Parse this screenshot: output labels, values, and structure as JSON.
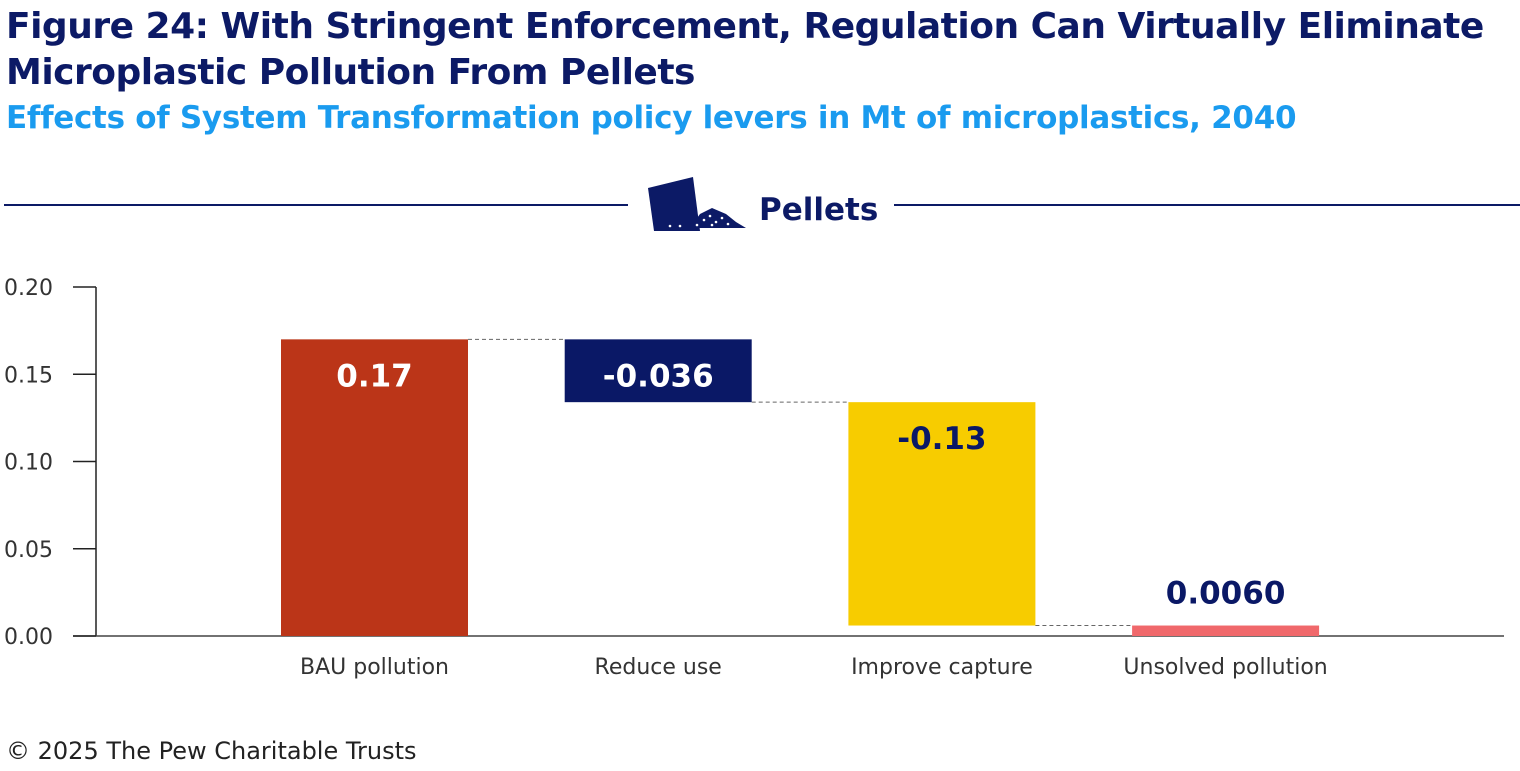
{
  "title": "Figure 24: With Stringent Enforcement, Regulation Can Virtually Eliminate Microplastic Pollution From Pellets",
  "subtitle": "Effects of System Transformation policy levers in Mt of microplastics, 2040",
  "section_label": "Pellets",
  "section_icon": "pellets-spill-icon",
  "footer": "© 2025 The Pew Charitable Trusts",
  "chart_data": {
    "type": "bar",
    "subtype": "waterfall",
    "categories": [
      "BAU pollution",
      "Reduce use",
      "Improve capture",
      "Unsolved pollution"
    ],
    "values": [
      0.17,
      -0.036,
      -0.128,
      0.006
    ],
    "data_labels": [
      "0.17",
      "-0.036",
      "-0.13",
      "0.0060"
    ],
    "colors": [
      "#bb3518",
      "#0a1866",
      "#f7cc00",
      "#f0686b"
    ],
    "label_colors": [
      "#ffffff",
      "#ffffff",
      "#0a1866",
      "#0a1866"
    ],
    "ylim": [
      0,
      0.2
    ],
    "yticks": [
      "0.00",
      "0.05",
      "0.10",
      "0.15",
      "0.20"
    ],
    "grid": false,
    "connectors": "dashed"
  }
}
